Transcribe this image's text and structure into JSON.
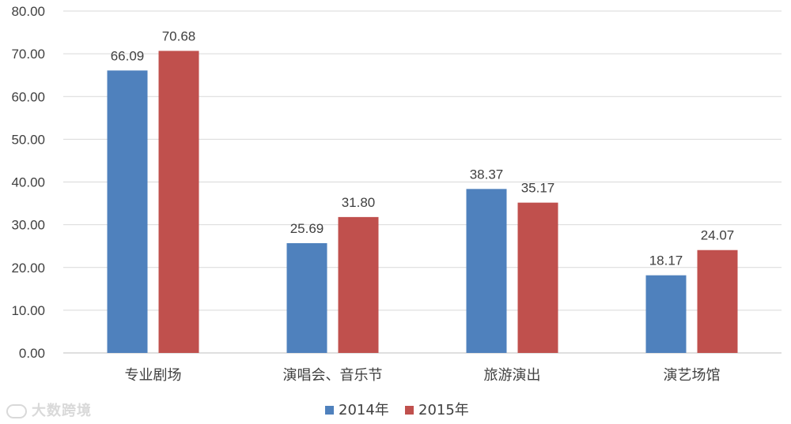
{
  "chart_data": {
    "type": "bar",
    "categories": [
      "专业剧场",
      "演唱会、音乐节",
      "旅游演出",
      "演艺场馆"
    ],
    "series": [
      {
        "name": "2014年",
        "values": [
          66.09,
          25.69,
          38.37,
          18.17
        ],
        "color": "#4F81BD"
      },
      {
        "name": "2015年",
        "values": [
          70.68,
          31.8,
          35.17,
          24.07
        ],
        "color": "#C0504D"
      }
    ],
    "ylim": [
      0,
      80
    ],
    "yticks": [
      "0.00",
      "10.00",
      "20.00",
      "30.00",
      "40.00",
      "50.00",
      "60.00",
      "70.00",
      "80.00"
    ],
    "data_labels": [
      [
        "66.09",
        "25.69",
        "38.37",
        "18.17"
      ],
      [
        "70.68",
        "31.80",
        "35.17",
        "24.07"
      ]
    ],
    "grid": true,
    "legend_position": "bottom",
    "title": "",
    "xlabel": "",
    "ylabel": ""
  },
  "watermark": {
    "text": "大数跨境",
    "icon": "logo-icon"
  }
}
